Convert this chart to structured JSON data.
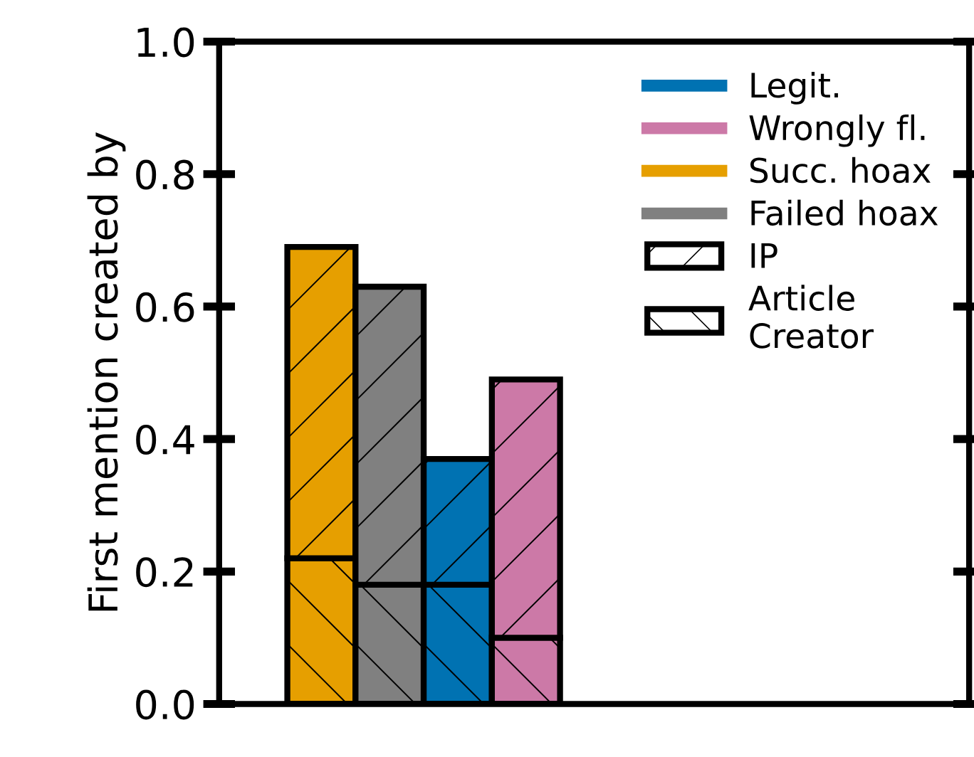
{
  "chart_data": {
    "type": "bar",
    "stacked": true,
    "ylabel": "First mention created by",
    "categories": [
      null,
      null,
      null,
      null
    ],
    "series": [
      {
        "name": "Article Creator",
        "colors": [
          "#e69f00",
          "#808080",
          "#0072b2",
          "#cc79a7"
        ],
        "values": [
          0.22,
          0.18,
          0.18,
          0.1
        ]
      },
      {
        "name": "IP",
        "colors": [
          "#e69f00",
          "#808080",
          "#0072b2",
          "#cc79a7"
        ],
        "values": [
          0.47,
          0.45,
          0.19,
          0.39
        ]
      },
      {
        "name": "Legit.",
        "color": "#0072b2",
        "values": [
          null,
          null,
          null,
          null
        ]
      },
      {
        "name": "Wrongly fl.",
        "color": "#cc79a7",
        "values": [
          null,
          null,
          null,
          null
        ]
      },
      {
        "name": "Succ. hoax",
        "color": "#e69f00",
        "values": [
          null,
          null,
          null,
          null
        ]
      },
      {
        "name": "Failed hoax",
        "color": "#808080",
        "values": [
          null,
          null,
          null,
          null
        ]
      }
    ],
    "ylim": [
      0,
      1.0
    ],
    "yticks": [
      {
        "value": 0,
        "label": "0.0"
      },
      0.2,
      0.4,
      0.6,
      0.8,
      {
        "value": 1.0,
        "label": "1.0"
      }
    ],
    "tick_labels": "y",
    "grid": false,
    "legend": "top right"
  }
}
